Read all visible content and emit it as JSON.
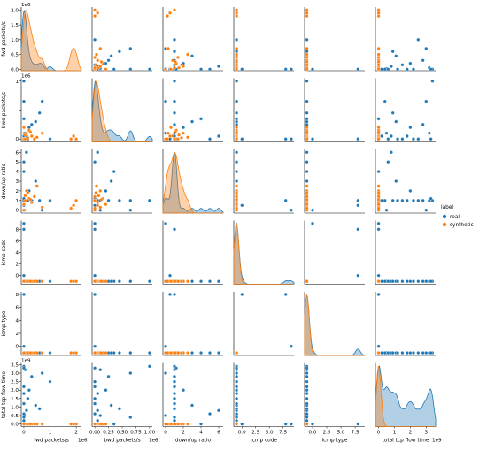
{
  "chart_data": {
    "type": "scatter",
    "title": "",
    "variables": [
      {
        "key": "fwd",
        "label": "fwd packets/s",
        "lim": [
          -0.05,
          2.1
        ],
        "ticks": [
          0,
          0.5,
          1.0,
          1.5,
          2.0
        ],
        "tick_labels": [
          "0.0",
          "0.5",
          "1.0",
          "1.5",
          "2.0"
        ],
        "xlim": [
          -0.1,
          2.2
        ],
        "xticks": [
          0,
          1,
          2
        ],
        "xtick_labels": [
          "0",
          "1",
          "2"
        ],
        "offset": "1e6"
      },
      {
        "key": "bwd",
        "label": "bwd packets/s",
        "lim": [
          -0.05,
          1.05
        ],
        "ticks": [
          0,
          0.5,
          1.0
        ],
        "tick_labels": [
          "0",
          "",
          "1"
        ],
        "xlim": [
          -0.05,
          1.05
        ],
        "xticks": [
          0,
          0.25,
          0.5,
          0.75,
          1.0
        ],
        "xtick_labels": [
          "0.00",
          "0.25",
          "0.50",
          "0.75",
          "1.00"
        ],
        "offset": "1e6"
      },
      {
        "key": "ratio",
        "label": "down/up ratio",
        "lim": [
          -0.3,
          6.3
        ],
        "ticks": [
          0,
          1,
          2,
          3,
          4,
          5,
          6
        ],
        "tick_labels": [
          "0",
          "1",
          "2",
          "3",
          "4",
          "5",
          "6"
        ],
        "xlim": [
          -0.3,
          6.5
        ],
        "xticks": [
          0,
          2,
          4,
          6
        ],
        "xtick_labels": [
          "0",
          "2",
          "4",
          "6"
        ],
        "offset": ""
      },
      {
        "key": "code",
        "label": "icmp code",
        "lim": [
          -1.5,
          9.5
        ],
        "ticks": [
          0,
          2,
          4,
          6,
          8
        ],
        "tick_labels": [
          "0",
          "2",
          "4",
          "6",
          "8"
        ],
        "xlim": [
          -1.5,
          9.5
        ],
        "xticks": [
          0,
          2.5,
          5,
          7.5
        ],
        "xtick_labels": [
          "0.0",
          "2.5",
          "5.0",
          "7.5"
        ],
        "offset": ""
      },
      {
        "key": "type",
        "label": "icmp type",
        "lim": [
          -1.4,
          8.4
        ],
        "ticks": [
          0,
          2,
          4,
          6,
          8
        ],
        "tick_labels": [
          "0",
          "2",
          "4",
          "6",
          "8"
        ],
        "xlim": [
          -1.4,
          9.2
        ],
        "xticks": [
          0,
          2.5,
          5,
          7.5
        ],
        "xtick_labels": [
          "0.0",
          "2.5",
          "5.0",
          "7.5"
        ],
        "offset": ""
      },
      {
        "key": "tcp",
        "label": "total tcp flow time",
        "lim": [
          -0.15,
          3.6
        ],
        "ticks": [
          0,
          0.5,
          1.0,
          1.5,
          2.0,
          2.5,
          3.0,
          3.5
        ],
        "tick_labels": [
          "0.0",
          "0.5",
          "1.0",
          "1.5",
          "2.0",
          "2.5",
          "3.0",
          "3.5"
        ],
        "xlim": [
          -0.2,
          3.6
        ],
        "xticks": [
          0,
          1,
          2,
          3
        ],
        "xtick_labels": [
          "0",
          "1",
          "2",
          "3"
        ],
        "offset": "1e9"
      }
    ],
    "series": [
      {
        "name": "real",
        "color": "#1f77b4",
        "points": [
          [
            0.0,
            0.0,
            1.0,
            8,
            8,
            0.0
          ],
          [
            0.0,
            0.05,
            1.0,
            -1,
            -1,
            0.2
          ],
          [
            0.02,
            0.1,
            0.0,
            -1,
            -1,
            0.5
          ],
          [
            0.05,
            0.1,
            1.0,
            -1,
            -1,
            3.2
          ],
          [
            0.1,
            0.05,
            6.0,
            -1,
            -1,
            0.8
          ],
          [
            0.15,
            0.0,
            1.0,
            -1,
            -1,
            1.5
          ],
          [
            0.2,
            0.2,
            2.0,
            -1,
            -1,
            2.0
          ],
          [
            0.3,
            0.25,
            1.0,
            -1,
            -1,
            2.8
          ],
          [
            0.45,
            0.3,
            3.0,
            -1,
            -1,
            1.1
          ],
          [
            0.6,
            0.45,
            1.0,
            -1,
            -1,
            0.9
          ],
          [
            0.7,
            0.65,
            0.0,
            -1,
            -1,
            3.0
          ],
          [
            1.0,
            0.0,
            1.0,
            -1,
            -1,
            2.5
          ],
          [
            0.0,
            0.35,
            4.0,
            -1,
            -1,
            0.0
          ],
          [
            0.0,
            0.0,
            0.0,
            9,
            0,
            0.0
          ],
          [
            0.0,
            0.0,
            0.5,
            0,
            8,
            0.0
          ],
          [
            0.0,
            1.0,
            1.0,
            -1,
            -1,
            3.4
          ],
          [
            0.0,
            0.05,
            1.0,
            -1,
            -1,
            1.8
          ],
          [
            0.0,
            0.0,
            1.0,
            -1,
            -1,
            2.2
          ],
          [
            0.0,
            0.0,
            1.0,
            -1,
            -1,
            1.2
          ],
          [
            0.0,
            0.0,
            5.0,
            -1,
            -1,
            0.6
          ],
          [
            0.0,
            0.65,
            1.0,
            -1,
            -1,
            0.4
          ],
          [
            0.0,
            0.0,
            1.2,
            -1,
            -1,
            3.3
          ]
        ]
      },
      {
        "name": "synthetic",
        "color": "#ff7f0e",
        "points": [
          [
            0.0,
            0.0,
            0.0,
            -1,
            -1,
            0.0
          ],
          [
            2.0,
            0.0,
            1.0,
            -1,
            -1,
            0.0
          ],
          [
            1.9,
            0.05,
            0.5,
            -1,
            -1,
            0.0
          ],
          [
            0.05,
            0.07,
            1.5,
            -1,
            -1,
            0.0
          ],
          [
            0.1,
            0.1,
            2.0,
            -1,
            -1,
            0.0
          ],
          [
            0.2,
            0.15,
            1.2,
            -1,
            -1,
            0.0
          ],
          [
            0.3,
            0.05,
            0.8,
            -1,
            -1,
            0.0
          ],
          [
            0.5,
            0.03,
            2.5,
            -1,
            -1,
            0.0
          ],
          [
            0.7,
            0.1,
            0.3,
            -1,
            -1,
            0.0
          ],
          [
            0.05,
            0.0,
            1.0,
            -1,
            -1,
            0.0
          ],
          [
            0.15,
            0.02,
            1.8,
            -1,
            -1,
            0.0
          ],
          [
            1.8,
            0.0,
            0.2,
            -1,
            -1,
            0.0
          ],
          [
            0.25,
            0.12,
            1.1,
            -1,
            -1,
            0.0
          ],
          [
            0.0,
            0.2,
            0.6,
            -1,
            -1,
            0.0
          ],
          [
            0.4,
            0.0,
            1.4,
            -1,
            -1,
            0.0
          ]
        ]
      }
    ],
    "legend": {
      "title": "label",
      "placement": "right"
    }
  },
  "legend": {
    "title": "label",
    "items": [
      "real",
      "synthetic"
    ]
  }
}
